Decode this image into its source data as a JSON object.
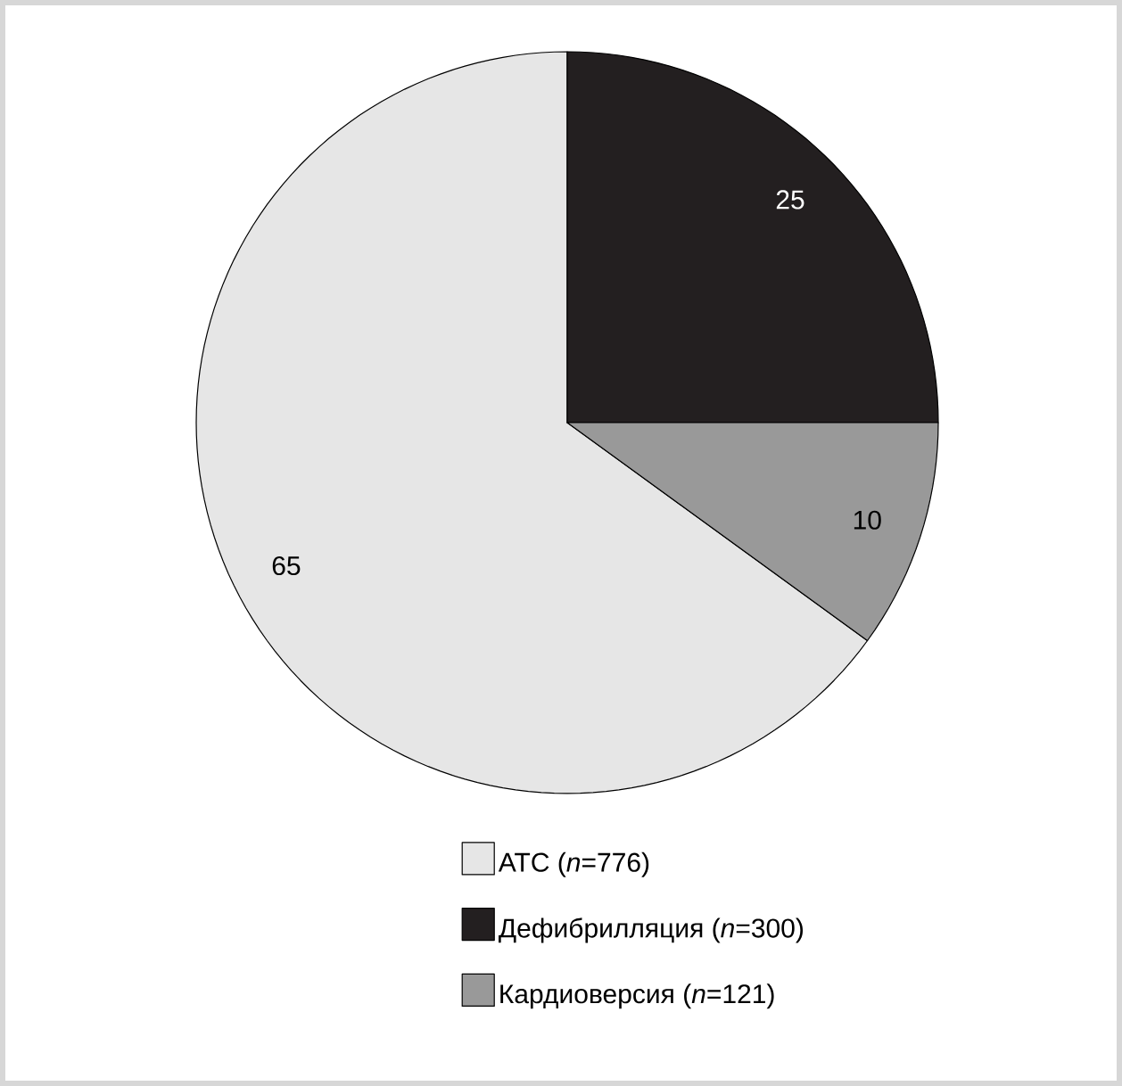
{
  "chart_data": {
    "type": "pie",
    "categories": [
      "АТС (*n*=776)",
      "Дефибрилляция (*n*=300)",
      "Кардиоверсия (*n*=121)"
    ],
    "values": [
      65,
      25,
      10
    ],
    "colors": [
      "#e6e6e6",
      "#231f20",
      "#999999"
    ],
    "data_labels": true,
    "legend": "bottom"
  }
}
